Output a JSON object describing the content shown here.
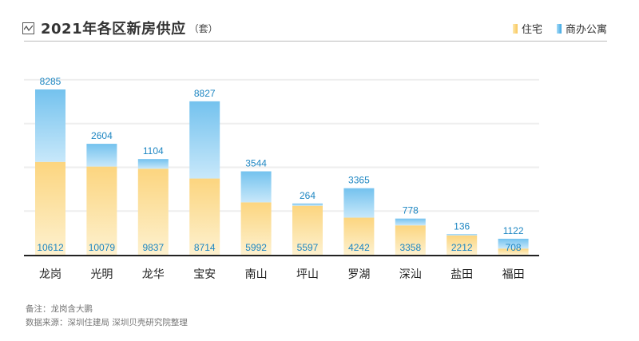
{
  "chart_data": {
    "type": "bar",
    "stacked": true,
    "title": "2021年各区新房供应",
    "unit": "（套）",
    "categories": [
      "龙岗",
      "光明",
      "龙华",
      "宝安",
      "南山",
      "坪山",
      "罗湖",
      "深汕",
      "盐田",
      "福田"
    ],
    "series": [
      {
        "name": "住宅",
        "color": "#fcd27c",
        "values": [
          10612,
          10079,
          9837,
          8714,
          5992,
          5597,
          4242,
          3358,
          2212,
          708
        ]
      },
      {
        "name": "商办公寓",
        "color": "#5fb8ea",
        "values": [
          8285,
          2604,
          1104,
          8827,
          3544,
          264,
          3365,
          778,
          136,
          1122
        ]
      }
    ],
    "ylim": [
      0,
      20000
    ],
    "grid": true,
    "legend": "top-right"
  },
  "notes": {
    "remark": "备注：龙岗含大鹏",
    "source": "数据来源：深圳住建局 深圳贝壳研究院整理"
  }
}
